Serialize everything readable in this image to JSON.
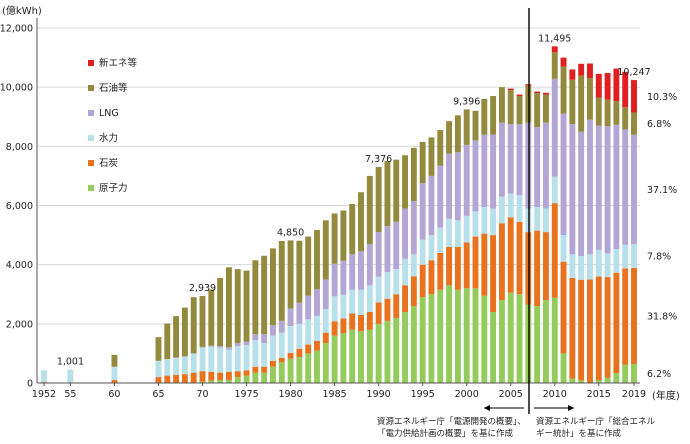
{
  "chart_data": {
    "type": "bar",
    "stacked": true,
    "y_unit": "(億kWh)",
    "x_unit": "(年度)",
    "ylim": [
      0,
      12000
    ],
    "y_ticks": [
      "0",
      "2,000",
      "4,000",
      "6,000",
      "8,000",
      "10,000",
      "12,000"
    ],
    "x_tick_labels": [
      {
        "year": 1952,
        "label": "1952"
      },
      {
        "year": 1955,
        "label": "55"
      },
      {
        "year": 1960,
        "label": "60"
      },
      {
        "year": 1965,
        "label": "65"
      },
      {
        "year": 1970,
        "label": "70"
      },
      {
        "year": 1975,
        "label": "1975"
      },
      {
        "year": 1980,
        "label": "1980"
      },
      {
        "year": 1985,
        "label": "1985"
      },
      {
        "year": 1990,
        "label": "1990"
      },
      {
        "year": 1995,
        "label": "1995"
      },
      {
        "year": 2000,
        "label": "2000"
      },
      {
        "year": 2005,
        "label": "2005"
      },
      {
        "year": 2010,
        "label": "2010"
      },
      {
        "year": 2015,
        "label": "2015"
      },
      {
        "year": 2019,
        "label": "2019"
      }
    ],
    "legend": [
      {
        "key": "renew",
        "label": "新エネ等",
        "color": "#e02020"
      },
      {
        "key": "oil",
        "label": "石油等",
        "color": "#938a3e"
      },
      {
        "key": "lng",
        "label": "LNG",
        "color": "#b3a6d4"
      },
      {
        "key": "hydro",
        "label": "水力",
        "color": "#b8e0ea"
      },
      {
        "key": "coal",
        "label": "石炭",
        "color": "#e8721e"
      },
      {
        "key": "nuclear",
        "label": "原子力",
        "color": "#93cc5c"
      }
    ],
    "stack_order": [
      "nuclear",
      "coal",
      "hydro",
      "lng",
      "oil",
      "renew"
    ],
    "years": [
      1952,
      1955,
      1960,
      1965,
      1966,
      1967,
      1968,
      1969,
      1970,
      1971,
      1972,
      1973,
      1974,
      1975,
      1976,
      1977,
      1978,
      1979,
      1980,
      1981,
      1982,
      1983,
      1984,
      1985,
      1986,
      1987,
      1988,
      1989,
      1990,
      1991,
      1992,
      1993,
      1994,
      1995,
      1996,
      1997,
      1998,
      1999,
      2000,
      2001,
      2002,
      2003,
      2004,
      2005,
      2006,
      2007,
      2008,
      2009,
      2010,
      2011,
      2012,
      2013,
      2014,
      2015,
      2016,
      2017,
      2018,
      2019
    ],
    "series": {
      "nuclear": [
        0,
        0,
        0,
        0,
        0,
        0,
        0,
        0,
        50,
        80,
        100,
        100,
        200,
        250,
        350,
        350,
        550,
        700,
        820,
        880,
        1000,
        1100,
        1350,
        1600,
        1680,
        1800,
        1750,
        1800,
        2000,
        2100,
        2200,
        2400,
        2600,
        2900,
        3000,
        3150,
        3300,
        3150,
        3200,
        3200,
        2950,
        2400,
        2800,
        3050,
        3000,
        2650,
        2600,
        2800,
        2880,
        1000,
        150,
        90,
        0,
        100,
        180,
        330,
        620,
        640
      ],
      "coal": [
        30,
        20,
        100,
        200,
        250,
        280,
        300,
        350,
        350,
        300,
        250,
        280,
        200,
        180,
        200,
        200,
        200,
        150,
        200,
        280,
        300,
        320,
        350,
        480,
        500,
        550,
        550,
        600,
        720,
        750,
        800,
        900,
        1000,
        1100,
        1150,
        1250,
        1300,
        1450,
        1550,
        1750,
        2100,
        2600,
        2600,
        2550,
        2450,
        2450,
        2550,
        2300,
        3200,
        3100,
        3400,
        3400,
        3500,
        3500,
        3400,
        3400,
        3250,
        3250
      ],
      "hydro": [
        400,
        430,
        450,
        550,
        560,
        580,
        600,
        650,
        800,
        850,
        850,
        750,
        850,
        850,
        900,
        800,
        850,
        850,
        900,
        850,
        850,
        850,
        800,
        850,
        800,
        800,
        850,
        900,
        880,
        900,
        850,
        900,
        750,
        850,
        850,
        850,
        950,
        900,
        900,
        850,
        900,
        900,
        900,
        800,
        900,
        800,
        800,
        800,
        900,
        900,
        800,
        800,
        850,
        900,
        800,
        800,
        800,
        800
      ],
      "lng": [
        0,
        0,
        0,
        0,
        0,
        0,
        0,
        0,
        20,
        30,
        50,
        80,
        100,
        120,
        200,
        300,
        350,
        400,
        600,
        700,
        800,
        900,
        1000,
        1100,
        1150,
        1200,
        1300,
        1400,
        1500,
        1550,
        1600,
        1700,
        1800,
        1900,
        2000,
        2100,
        2200,
        2300,
        2400,
        2400,
        2450,
        2500,
        2500,
        2350,
        2400,
        2900,
        2700,
        2900,
        3300,
        4100,
        4400,
        4200,
        4550,
        4200,
        4300,
        4200,
        3900,
        3700
      ],
      "oil": [
        0,
        0,
        400,
        800,
        1200,
        1400,
        1650,
        1900,
        1720,
        1900,
        2300,
        2700,
        2500,
        2400,
        2500,
        2650,
        2600,
        2700,
        2300,
        2100,
        2000,
        2000,
        2000,
        1700,
        1700,
        1700,
        2000,
        2300,
        2200,
        2200,
        2100,
        1800,
        1800,
        1400,
        1300,
        1200,
        1100,
        1250,
        1200,
        1000,
        1200,
        1300,
        1200,
        1150,
        950,
        1250,
        1150,
        950,
        900,
        1600,
        1500,
        1900,
        1400,
        950,
        900,
        800,
        750,
        750
      ],
      "renew": [
        0,
        0,
        0,
        0,
        0,
        0,
        0,
        0,
        0,
        0,
        0,
        0,
        0,
        0,
        0,
        0,
        0,
        0,
        0,
        0,
        0,
        0,
        0,
        0,
        0,
        0,
        0,
        0,
        0,
        0,
        0,
        0,
        0,
        0,
        0,
        0,
        0,
        0,
        0,
        0,
        0,
        0,
        0,
        50,
        50,
        50,
        50,
        60,
        200,
        300,
        350,
        400,
        500,
        800,
        900,
        1100,
        1200,
        1100
      ]
    },
    "annotations": [
      {
        "year": 1955,
        "label": "1,001"
      },
      {
        "year": 1970,
        "label": "2,939"
      },
      {
        "year": 1980,
        "label": "4,850"
      },
      {
        "year": 1990,
        "label": "7,376"
      },
      {
        "year": 2000,
        "label": "9,396"
      },
      {
        "year": 2010,
        "label": "11,495"
      },
      {
        "year": 2019,
        "label": "10,247"
      }
    ],
    "shares_2019": [
      {
        "key": "renew",
        "label": "10.3%"
      },
      {
        "key": "oil",
        "label": "6.8%"
      },
      {
        "key": "lng",
        "label": "37.1%"
      },
      {
        "key": "hydro",
        "label": "7.8%"
      },
      {
        "key": "coal",
        "label": "31.8%"
      },
      {
        "key": "nuclear",
        "label": "6.2%"
      }
    ],
    "sources": {
      "left_line1": "資源エネルギー庁「電源開発の概要」、",
      "left_line2": "「電力供給計画の概要」を基に作成",
      "right_line1": "資源エネルギー庁「総合エネル",
      "right_line2": "ギー統計」を基に作成"
    }
  }
}
